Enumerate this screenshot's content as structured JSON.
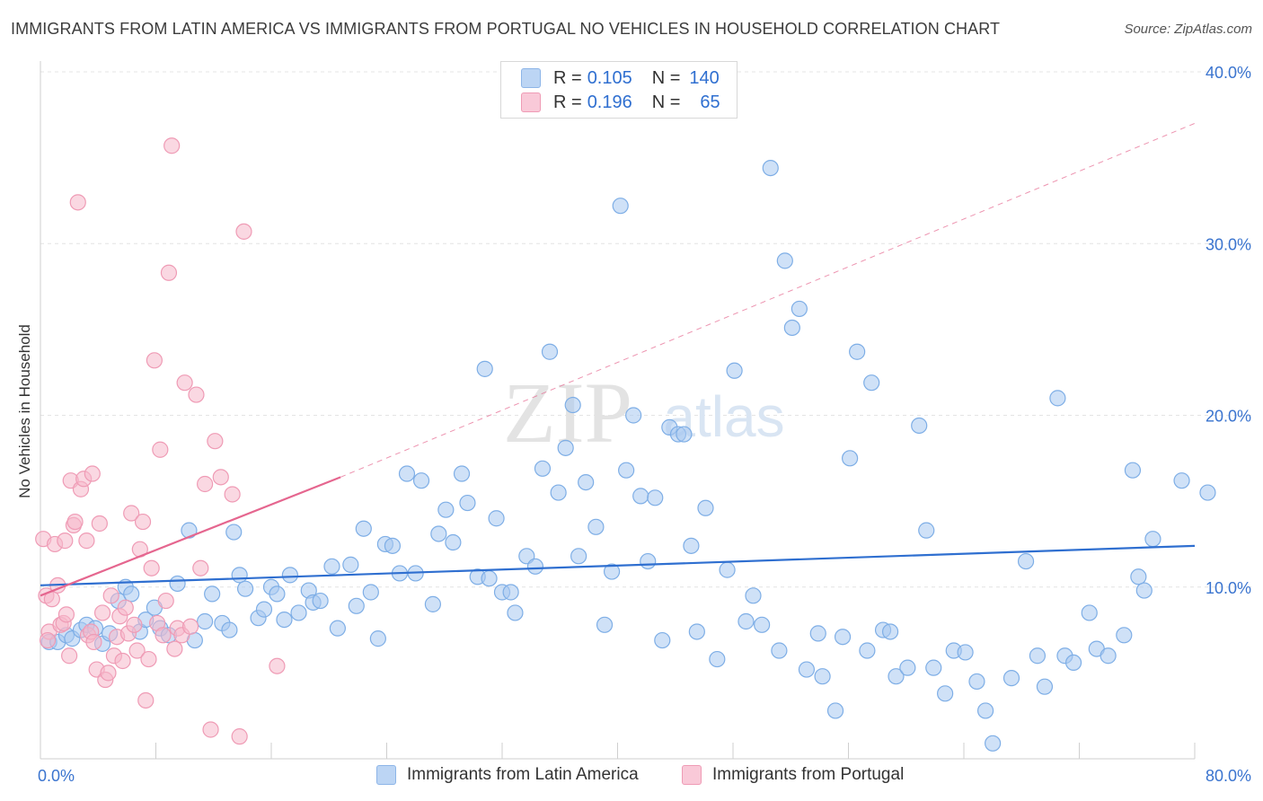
{
  "title": "IMMIGRANTS FROM LATIN AMERICA VS IMMIGRANTS FROM PORTUGAL NO VEHICLES IN HOUSEHOLD CORRELATION CHART",
  "source": "Source: ZipAtlas.com",
  "watermark": {
    "zip": "ZIP",
    "atlas": "atlas"
  },
  "legend": {
    "rows": [
      {
        "r_label": "R = ",
        "r_value": "0.105",
        "n_label": "N = ",
        "n_value": "140",
        "color": "#a8c8f0"
      },
      {
        "r_label": "R = ",
        "r_value": "0.196",
        "n_label": "N = ",
        "n_value": "65",
        "color": "#f6b8cb"
      }
    ]
  },
  "bottom_legend": {
    "series1": "Immigrants from Latin America",
    "series2": "Immigrants from Portugal"
  },
  "chart_data": {
    "type": "scatter",
    "title": "IMMIGRANTS FROM LATIN AMERICA VS IMMIGRANTS FROM PORTUGAL NO VEHICLES IN HOUSEHOLD CORRELATION CHART",
    "xlabel": "",
    "ylabel": "No Vehicles in Household",
    "xlim": [
      0,
      80
    ],
    "ylim": [
      0,
      40
    ],
    "x_tick_labels": [
      "0.0%",
      "80.0%"
    ],
    "y_tick_values": [
      10,
      20,
      30,
      40
    ],
    "y_tick_labels": [
      "10.0%",
      "20.0%",
      "30.0%",
      "40.0%"
    ],
    "grid": true,
    "legend_position": "top-center",
    "colors": {
      "latin_fill": "#a8c8f0",
      "latin_stroke": "#7eaee6",
      "latin_line": "#2f6fd0",
      "portugal_fill": "#f6b8cb",
      "portugal_stroke": "#ef9bb5",
      "portugal_line": "#e5668f",
      "tick_label": "#3a74cf"
    },
    "series": [
      {
        "name": "Immigrants from Latin America",
        "trend": {
          "x": [
            0,
            80
          ],
          "y": [
            10.1,
            12.4
          ]
        },
        "points": [
          [
            0.6,
            6.8
          ],
          [
            1.2,
            6.8
          ],
          [
            1.8,
            7.2
          ],
          [
            2.2,
            7.0
          ],
          [
            2.8,
            7.5
          ],
          [
            3.2,
            7.8
          ],
          [
            3.8,
            7.6
          ],
          [
            4.3,
            6.7
          ],
          [
            4.8,
            7.3
          ],
          [
            5.4,
            9.2
          ],
          [
            5.9,
            10.0
          ],
          [
            6.3,
            9.6
          ],
          [
            6.9,
            7.4
          ],
          [
            7.3,
            8.1
          ],
          [
            7.9,
            8.8
          ],
          [
            8.3,
            7.6
          ],
          [
            8.9,
            7.2
          ],
          [
            9.5,
            10.2
          ],
          [
            10.3,
            13.3
          ],
          [
            10.7,
            6.9
          ],
          [
            11.4,
            8.0
          ],
          [
            11.9,
            9.6
          ],
          [
            12.6,
            7.9
          ],
          [
            13.1,
            7.5
          ],
          [
            13.4,
            13.2
          ],
          [
            13.8,
            10.7
          ],
          [
            14.2,
            9.9
          ],
          [
            15.1,
            8.2
          ],
          [
            15.5,
            8.7
          ],
          [
            16.0,
            10.0
          ],
          [
            16.4,
            9.6
          ],
          [
            16.9,
            8.1
          ],
          [
            17.3,
            10.7
          ],
          [
            17.9,
            8.5
          ],
          [
            18.6,
            9.8
          ],
          [
            18.9,
            9.1
          ],
          [
            19.4,
            9.2
          ],
          [
            20.2,
            11.2
          ],
          [
            20.6,
            7.6
          ],
          [
            21.5,
            11.3
          ],
          [
            21.9,
            8.9
          ],
          [
            22.4,
            13.4
          ],
          [
            22.9,
            9.7
          ],
          [
            23.4,
            7.0
          ],
          [
            23.9,
            12.5
          ],
          [
            24.4,
            12.4
          ],
          [
            24.9,
            10.8
          ],
          [
            25.4,
            16.6
          ],
          [
            26.0,
            10.8
          ],
          [
            26.4,
            16.2
          ],
          [
            27.2,
            9.0
          ],
          [
            27.6,
            13.1
          ],
          [
            28.1,
            14.5
          ],
          [
            28.6,
            12.6
          ],
          [
            29.2,
            16.6
          ],
          [
            29.6,
            14.9
          ],
          [
            30.3,
            10.6
          ],
          [
            30.8,
            22.7
          ],
          [
            31.1,
            10.5
          ],
          [
            31.6,
            14.0
          ],
          [
            32.0,
            9.7
          ],
          [
            32.6,
            9.7
          ],
          [
            32.9,
            8.5
          ],
          [
            33.7,
            11.8
          ],
          [
            34.3,
            11.2
          ],
          [
            34.8,
            16.9
          ],
          [
            35.3,
            23.7
          ],
          [
            35.9,
            15.5
          ],
          [
            36.4,
            18.1
          ],
          [
            36.9,
            20.6
          ],
          [
            37.3,
            11.8
          ],
          [
            37.8,
            16.1
          ],
          [
            38.5,
            13.5
          ],
          [
            39.1,
            7.8
          ],
          [
            39.6,
            10.9
          ],
          [
            40.2,
            32.2
          ],
          [
            40.6,
            16.8
          ],
          [
            41.1,
            20.0
          ],
          [
            41.6,
            15.3
          ],
          [
            42.1,
            11.5
          ],
          [
            42.6,
            15.2
          ],
          [
            43.1,
            6.9
          ],
          [
            43.6,
            19.3
          ],
          [
            44.2,
            18.9
          ],
          [
            44.6,
            18.9
          ],
          [
            45.1,
            12.4
          ],
          [
            45.5,
            7.4
          ],
          [
            46.1,
            14.6
          ],
          [
            46.9,
            5.8
          ],
          [
            47.6,
            11.0
          ],
          [
            48.1,
            22.6
          ],
          [
            48.9,
            8.0
          ],
          [
            49.4,
            9.5
          ],
          [
            50.0,
            7.8
          ],
          [
            50.6,
            34.4
          ],
          [
            51.2,
            6.3
          ],
          [
            51.6,
            29.0
          ],
          [
            52.1,
            25.1
          ],
          [
            52.6,
            26.2
          ],
          [
            53.1,
            5.2
          ],
          [
            53.9,
            7.3
          ],
          [
            54.2,
            4.8
          ],
          [
            55.1,
            2.8
          ],
          [
            55.6,
            7.1
          ],
          [
            56.1,
            17.5
          ],
          [
            56.6,
            23.7
          ],
          [
            57.3,
            6.3
          ],
          [
            57.6,
            21.9
          ],
          [
            58.4,
            7.5
          ],
          [
            58.9,
            7.4
          ],
          [
            59.3,
            4.8
          ],
          [
            60.1,
            5.3
          ],
          [
            60.9,
            19.4
          ],
          [
            61.4,
            13.3
          ],
          [
            61.9,
            5.3
          ],
          [
            62.7,
            3.8
          ],
          [
            63.3,
            6.3
          ],
          [
            64.1,
            6.2
          ],
          [
            64.9,
            4.5
          ],
          [
            65.5,
            2.8
          ],
          [
            66.0,
            0.9
          ],
          [
            67.3,
            4.7
          ],
          [
            68.3,
            11.5
          ],
          [
            69.1,
            6.0
          ],
          [
            69.6,
            4.2
          ],
          [
            70.5,
            21.0
          ],
          [
            71.0,
            6.0
          ],
          [
            71.6,
            5.6
          ],
          [
            72.7,
            8.5
          ],
          [
            73.2,
            6.4
          ],
          [
            74.0,
            6.0
          ],
          [
            75.1,
            7.2
          ],
          [
            75.7,
            16.8
          ],
          [
            76.1,
            10.6
          ],
          [
            76.5,
            9.8
          ],
          [
            77.1,
            12.8
          ],
          [
            79.1,
            16.2
          ],
          [
            80.9,
            15.5
          ]
        ]
      },
      {
        "name": "Immigrants from Portugal",
        "trend": {
          "x": [
            0,
            20.8
          ],
          "y": [
            9.5,
            16.4
          ]
        },
        "trend_dashed": {
          "x": [
            20.8,
            80
          ],
          "y": [
            16.4,
            37.0
          ]
        },
        "points": [
          [
            0.2,
            12.8
          ],
          [
            0.4,
            9.5
          ],
          [
            0.6,
            7.4
          ],
          [
            0.8,
            9.3
          ],
          [
            1.0,
            12.5
          ],
          [
            1.2,
            10.1
          ],
          [
            1.4,
            7.8
          ],
          [
            1.6,
            7.9
          ],
          [
            1.8,
            8.4
          ],
          [
            2.0,
            6.0
          ],
          [
            2.1,
            16.2
          ],
          [
            2.3,
            13.6
          ],
          [
            2.4,
            13.8
          ],
          [
            2.6,
            32.4
          ],
          [
            2.8,
            15.7
          ],
          [
            3.0,
            16.3
          ],
          [
            3.2,
            12.7
          ],
          [
            3.3,
            7.2
          ],
          [
            3.5,
            7.4
          ],
          [
            3.7,
            6.8
          ],
          [
            3.9,
            5.2
          ],
          [
            4.1,
            13.7
          ],
          [
            4.3,
            8.5
          ],
          [
            4.5,
            4.6
          ],
          [
            4.7,
            5.0
          ],
          [
            4.9,
            9.5
          ],
          [
            5.1,
            6.0
          ],
          [
            5.3,
            7.1
          ],
          [
            5.5,
            8.3
          ],
          [
            5.7,
            5.7
          ],
          [
            5.9,
            8.8
          ],
          [
            6.1,
            7.3
          ],
          [
            6.3,
            14.3
          ],
          [
            6.5,
            7.8
          ],
          [
            6.7,
            6.3
          ],
          [
            6.9,
            12.2
          ],
          [
            7.1,
            13.8
          ],
          [
            7.3,
            3.4
          ],
          [
            7.5,
            5.8
          ],
          [
            7.7,
            11.1
          ],
          [
            7.9,
            23.2
          ],
          [
            8.1,
            7.9
          ],
          [
            8.3,
            18.0
          ],
          [
            8.5,
            7.2
          ],
          [
            8.7,
            9.2
          ],
          [
            8.9,
            28.3
          ],
          [
            9.1,
            35.7
          ],
          [
            9.3,
            6.4
          ],
          [
            9.5,
            7.6
          ],
          [
            9.8,
            7.2
          ],
          [
            10.0,
            21.9
          ],
          [
            10.4,
            7.7
          ],
          [
            10.8,
            21.2
          ],
          [
            11.1,
            11.1
          ],
          [
            11.4,
            16.0
          ],
          [
            11.8,
            1.7
          ],
          [
            12.1,
            18.5
          ],
          [
            12.5,
            16.4
          ],
          [
            13.3,
            15.4
          ],
          [
            13.8,
            1.3
          ],
          [
            14.1,
            30.7
          ],
          [
            16.4,
            5.4
          ],
          [
            1.7,
            12.7
          ],
          [
            3.6,
            16.6
          ],
          [
            0.5,
            6.9
          ]
        ]
      }
    ]
  }
}
